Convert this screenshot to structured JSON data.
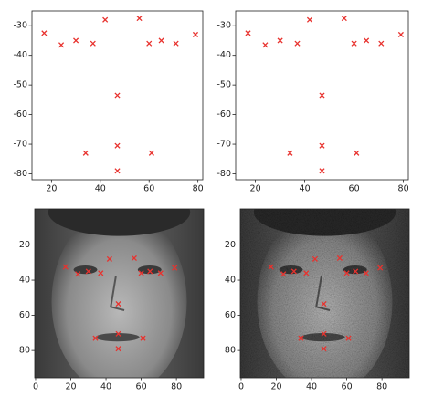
{
  "chart_data": [
    {
      "type": "scatter",
      "marker_color": "#e8322e",
      "x": [
        17,
        24,
        30,
        37,
        42,
        56,
        60,
        65,
        71,
        79,
        47,
        34,
        47,
        61,
        47
      ],
      "y": [
        -32.5,
        -36.5,
        -35,
        -36,
        -28,
        -27.5,
        -36,
        -35,
        -36,
        -33,
        -53.5,
        -73,
        -70.5,
        -73,
        -79
      ],
      "xlim": [
        12,
        82
      ],
      "ylim": [
        -82,
        -25
      ],
      "xticks": [
        20,
        40,
        60,
        80
      ],
      "yticks": [
        -30,
        -40,
        -50,
        -60,
        -70,
        -80
      ]
    },
    {
      "type": "scatter",
      "marker_color": "#e8322e",
      "x": [
        17,
        24,
        30,
        37,
        42,
        56,
        60,
        65,
        71,
        79,
        47,
        34,
        47,
        61,
        47
      ],
      "y": [
        -32.5,
        -36.5,
        -35,
        -36,
        -28,
        -27.5,
        -36,
        -35,
        -36,
        -33,
        -53.5,
        -73,
        -70.5,
        -73,
        -79
      ],
      "xlim": [
        12,
        82
      ],
      "ylim": [
        -82,
        -25
      ],
      "xticks": [
        20,
        40,
        60,
        80
      ],
      "yticks": [
        -30,
        -40,
        -50,
        -60,
        -70,
        -80
      ]
    },
    {
      "type": "image",
      "noise": false,
      "marker_color": "#e8322e",
      "x": [
        17,
        24,
        30,
        37,
        42,
        56,
        60,
        65,
        71,
        79,
        47,
        34,
        47,
        61,
        47
      ],
      "y": [
        32.5,
        36.5,
        35,
        36,
        28,
        27.5,
        36,
        35,
        36,
        33,
        53.5,
        73,
        70.5,
        73,
        79
      ],
      "xlim": [
        -0.5,
        95.5
      ],
      "ylim": [
        95.5,
        -0.5
      ],
      "xticks": [
        0,
        20,
        40,
        60,
        80
      ],
      "yticks": [
        20,
        40,
        60,
        80
      ]
    },
    {
      "type": "image",
      "noise": true,
      "marker_color": "#e8322e",
      "x": [
        17,
        24,
        30,
        37,
        42,
        56,
        60,
        65,
        71,
        79,
        47,
        34,
        47,
        61,
        47
      ],
      "y": [
        32.5,
        36.5,
        35,
        36,
        28,
        27.5,
        36,
        35,
        36,
        33,
        53.5,
        73,
        70.5,
        73,
        79
      ],
      "xlim": [
        -0.5,
        95.5
      ],
      "ylim": [
        95.5,
        -0.5
      ],
      "xticks": [
        0,
        20,
        40,
        60,
        80
      ],
      "yticks": [
        20,
        40,
        60,
        80
      ]
    }
  ]
}
